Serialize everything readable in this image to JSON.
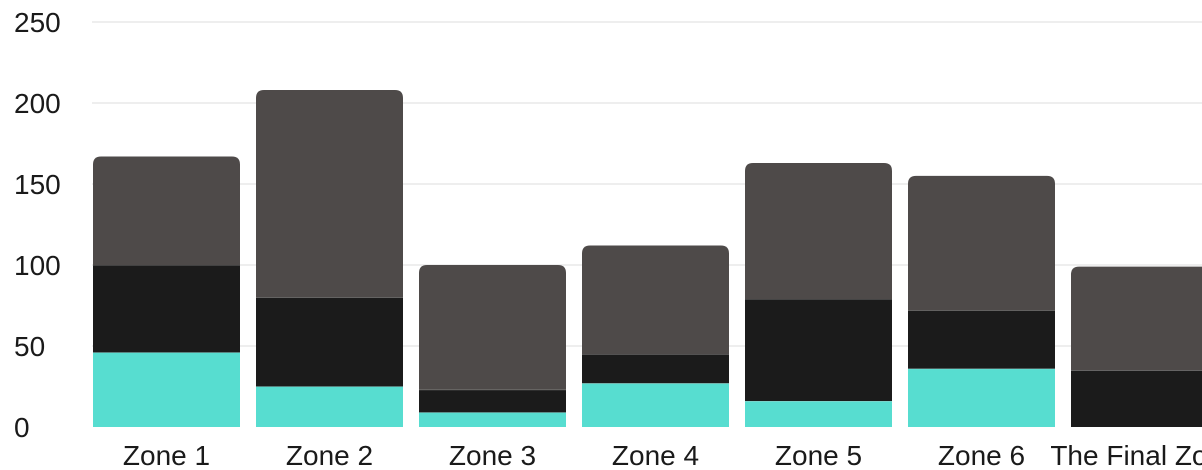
{
  "chart_data": {
    "type": "bar",
    "stacked": true,
    "categories": [
      "Zone 1",
      "Zone 2",
      "Zone 3",
      "Zone 4",
      "Zone 5",
      "Zone 6",
      "The Final Zone"
    ],
    "series": [
      {
        "values": [
          46,
          25,
          9,
          27,
          16,
          36,
          0
        ],
        "color": "#57ddd0"
      },
      {
        "values": [
          54,
          55,
          14,
          18,
          63,
          36,
          35
        ],
        "color": "#1b1b1b"
      },
      {
        "values": [
          67,
          128,
          77,
          67,
          84,
          83,
          64
        ],
        "color": "#4e4a49"
      }
    ],
    "ylim": [
      0,
      250
    ],
    "yticks": [
      0,
      50,
      100,
      150,
      200,
      250
    ],
    "grid": true,
    "legend": "none",
    "xlabel": "",
    "ylabel": ""
  }
}
